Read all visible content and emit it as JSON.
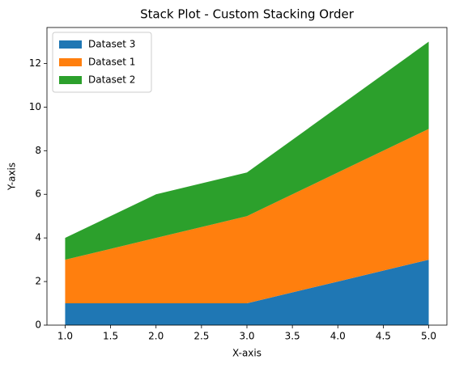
{
  "chart_data": {
    "type": "stackplot",
    "title": "Stack Plot - Custom Stacking Order",
    "x_label": "X-axis",
    "y_label": "Y-axis",
    "x": [
      1,
      2,
      3,
      4,
      5
    ],
    "series": [
      {
        "name": "Dataset 3",
        "color": "#1f77b4",
        "values": [
          1,
          1,
          1,
          2,
          3
        ]
      },
      {
        "name": "Dataset 1",
        "color": "#ff7f0e",
        "values": [
          2,
          3,
          4,
          5,
          6
        ]
      },
      {
        "name": "Dataset 2",
        "color": "#2ca02c",
        "values": [
          1,
          2,
          2,
          3,
          4
        ]
      }
    ],
    "xlim": [
      0.8,
      5.2
    ],
    "xticks": [
      {
        "value": 1,
        "label": "1.0"
      },
      {
        "value": 1.5,
        "label": "1.5"
      },
      {
        "value": 2,
        "label": "2.0"
      },
      {
        "value": 2.5,
        "label": "2.5"
      },
      {
        "value": 3,
        "label": "3.0"
      },
      {
        "value": 3.5,
        "label": "3.5"
      },
      {
        "value": 4,
        "label": "4.0"
      },
      {
        "value": 4.5,
        "label": "4.5"
      },
      {
        "value": 5,
        "label": "5.0"
      }
    ],
    "ylim": [
      0,
      13.65
    ],
    "yticks": [
      0,
      2,
      4,
      6,
      8,
      10,
      12
    ],
    "legend": "upper left"
  }
}
